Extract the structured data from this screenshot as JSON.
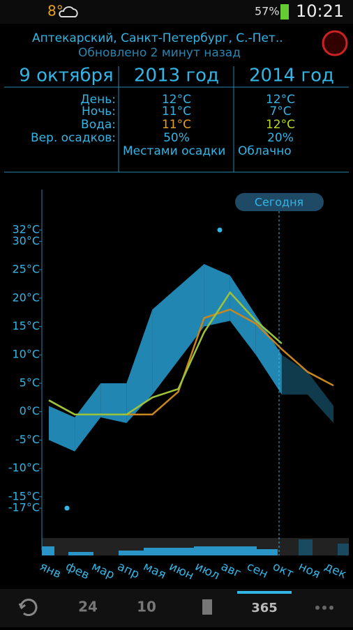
{
  "status_bar": {
    "temperature": "8°",
    "battery": "57%",
    "time": "10:21"
  },
  "header": {
    "location": "Аптекарский, Санкт-Петербург, С.-Пет..",
    "updated": "Обновлено 2 минут назад"
  },
  "table": {
    "columns": [
      "9 октября",
      "2013 год",
      "2014 год"
    ],
    "rows": [
      [
        "День:",
        "12°C",
        "12°C"
      ],
      [
        "Ночь:",
        "11°C",
        "7°C"
      ],
      [
        "Вода:",
        "11°C",
        "12°C"
      ],
      [
        "Вер. осадков:",
        "50%",
        "20%"
      ]
    ],
    "conditions": [
      "Местами осадки",
      "Облачно"
    ]
  },
  "chart_data": {
    "type": "line",
    "annotation": "Сегодня",
    "categories": [
      "янв",
      "фев",
      "мар",
      "апр",
      "мая",
      "июн",
      "июл",
      "авг",
      "сен",
      "окт",
      "ноя",
      "дек"
    ],
    "band": {
      "color": "#2aa8de",
      "max": [
        1,
        -1,
        5,
        5,
        18,
        22,
        26,
        24,
        17,
        10,
        7,
        1
      ],
      "min": [
        -5,
        -7,
        -1,
        -2,
        3,
        9,
        15,
        16,
        10,
        3,
        3,
        -2
      ]
    },
    "series": [
      {
        "color": "#c8861e",
        "values": [
          2,
          -0.5,
          -0.5,
          -0.5,
          -0.5,
          3.5,
          16.5,
          18,
          15.5,
          11,
          7,
          4.6
        ]
      },
      {
        "color": "#9cc43a",
        "values": [
          2,
          -0.5,
          -0.5,
          -0.5,
          2.5,
          4,
          14,
          21,
          16,
          12,
          null,
          null
        ]
      }
    ],
    "ylim": [
      -22,
      35
    ],
    "yticks": [
      {
        "value": 32,
        "label": "32°C"
      },
      {
        "value": 30,
        "label": "30°C"
      },
      {
        "value": 25,
        "label": "25°C"
      },
      {
        "value": 20,
        "label": "20°C"
      },
      {
        "value": 15,
        "label": "15°C"
      },
      {
        "value": 10,
        "label": "10°C"
      },
      {
        "value": 5,
        "label": "5°C"
      },
      {
        "value": 0,
        "label": "0°C"
      },
      {
        "value": -5,
        "label": "-5°C"
      },
      {
        "value": -10,
        "label": "-10°C"
      },
      {
        "value": -15,
        "label": "-15°C"
      },
      {
        "value": -17,
        "label": "-17°C"
      }
    ]
  },
  "bottom_nav": [
    "24",
    "10",
    "365"
  ]
}
